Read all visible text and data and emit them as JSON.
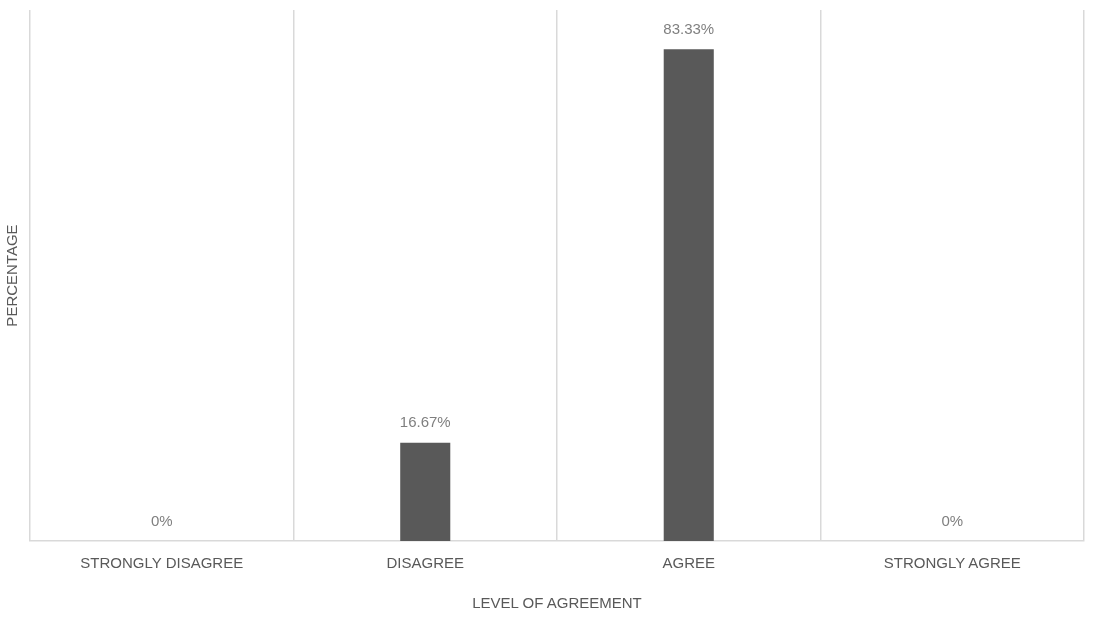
{
  "chart_data": {
    "type": "bar",
    "xlabel": "LEVEL OF AGREEMENT",
    "ylabel": "PERCENTAGE",
    "categories": [
      "STRONGLY DISAGREE",
      "DISAGREE",
      "AGREE",
      "STRONGLY AGREE"
    ],
    "values": [
      0,
      16.67,
      83.33,
      0
    ],
    "color": "#595959",
    "value_labels": [
      "0%",
      "16.67%",
      "83.33%",
      "0%"
    ],
    "grid": "x",
    "legend": false
  }
}
